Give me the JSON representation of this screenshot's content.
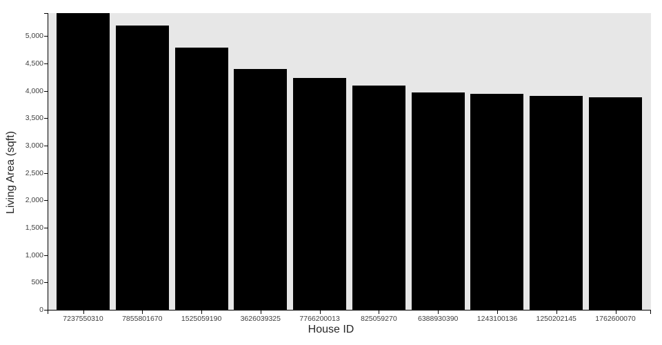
{
  "chart_data": {
    "type": "bar",
    "title": "",
    "xlabel": "House ID",
    "ylabel": "Living Area (sqft)",
    "categories": [
      "7237550310",
      "7855801670",
      "1525059190",
      "3626039325",
      "7766200013",
      "825059270",
      "6388930390",
      "1243100136",
      "1250202145",
      "1762600070"
    ],
    "values": [
      5420,
      5190,
      4790,
      4400,
      4230,
      4100,
      3970,
      3950,
      3910,
      3880
    ],
    "ylim": [
      0,
      5420
    ],
    "yticks": {
      "values": [
        0,
        500,
        1000,
        1500,
        2000,
        2500,
        3000,
        3500,
        4000,
        4500,
        5000
      ],
      "labels": [
        "0",
        "500",
        "1,000",
        "1,500",
        "2,000",
        "2,500",
        "3,000",
        "3,500",
        "4,000",
        "4,500",
        "5,000"
      ]
    },
    "grid": false,
    "legend": false,
    "colors": {
      "bar": "#000000",
      "plot_background": "#e7e7e7",
      "figure_background": "#ffffff",
      "axis": "#000000",
      "tick_label": "#3d3d3d",
      "axis_title": "#262626"
    }
  }
}
